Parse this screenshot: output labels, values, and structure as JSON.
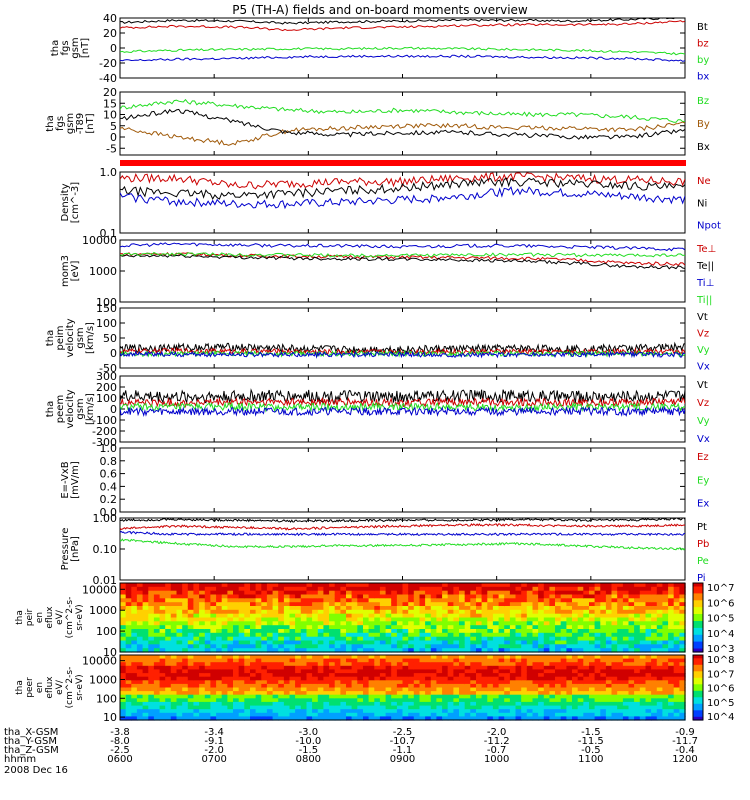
{
  "title": "P5 (TH-A) fields and on-board moments overview",
  "colors": {
    "black": "#000000",
    "red": "#cc0000",
    "green": "#22dd22",
    "blue": "#0000cc",
    "brown": "#a05a0a",
    "axis": "#000000"
  },
  "chart_data": {
    "type": "line",
    "x_ticks": [
      "0600",
      "0700",
      "0800",
      "0900",
      "1000",
      "1100",
      "1200"
    ],
    "x_range": [
      "0600",
      "1200"
    ],
    "date": "2008 Dec 16",
    "ephemeris": {
      "labels": [
        "tha_X-GSM",
        "tha_Y-GSM",
        "tha_Z-GSM",
        "hhmm"
      ],
      "rows": [
        [
          "-3.8",
          "-3.4",
          "-3.0",
          "-2.5",
          "-2.0",
          "-1.5",
          "-0.9"
        ],
        [
          "-8.0",
          "-9.1",
          "-10.0",
          "-10.7",
          "-11.2",
          "-11.5",
          "-11.7"
        ],
        [
          "-2.5",
          "-2.0",
          "-1.5",
          "-1.1",
          "-0.7",
          "-0.5",
          "-0.4"
        ],
        [
          "0600",
          "0700",
          "0800",
          "0900",
          "1000",
          "1100",
          "1200"
        ]
      ]
    },
    "panels": [
      {
        "ylabel": [
          "tha",
          "fgs",
          "gsm",
          "[nT]"
        ],
        "yscale": "linear",
        "ylim": [
          -40,
          40
        ],
        "ticks": [
          "40",
          "20",
          "0",
          "-20",
          "-40"
        ],
        "series": [
          {
            "name": "Bt",
            "color": "black",
            "values": [
              34,
              37,
              36,
              33,
              35,
              36,
              37,
              37,
              36,
              38,
              41
            ]
          },
          {
            "name": "bz",
            "color": "red",
            "values": [
              27,
              29,
              28,
              24,
              27,
              28,
              30,
              31,
              31,
              32,
              36
            ]
          },
          {
            "name": "by",
            "color": "green",
            "values": [
              -5,
              -3,
              -2,
              -1,
              -1,
              0,
              -1,
              -2,
              -3,
              -5,
              -8
            ]
          },
          {
            "name": "bx",
            "color": "blue",
            "values": [
              -17,
              -15,
              -14,
              -12,
              -11,
              -11,
              -11,
              -12,
              -13,
              -14,
              -17
            ]
          }
        ]
      },
      {
        "ylabel": [
          "tha",
          "fgs",
          "gsm",
          "-T89",
          "[nT]"
        ],
        "yscale": "linear",
        "ylim": [
          -8,
          20
        ],
        "ticks": [
          "20",
          "15",
          "10",
          "5",
          "0",
          "-5"
        ],
        "series": [
          {
            "name": "Bz",
            "color": "green",
            "values": [
              13,
              16,
              14,
              12,
              11,
              12,
              11,
              10,
              10,
              9,
              7
            ]
          },
          {
            "name": "By",
            "color": "brown",
            "values": [
              4,
              0,
              -3,
              3,
              4,
              5,
              5,
              4,
              4,
              3,
              6
            ]
          },
          {
            "name": "Bx",
            "color": "black",
            "values": [
              8,
              12,
              7,
              2,
              1,
              2,
              2,
              1,
              0,
              0,
              3
            ]
          }
        ]
      },
      {
        "ylabel": [
          "Density",
          "[cm^-3]"
        ],
        "yscale": "log",
        "ylim": [
          0.1,
          1.0
        ],
        "ticks": [
          "1.0",
          "0.1"
        ],
        "series": [
          {
            "name": "Ne",
            "color": "red",
            "values": [
              0.8,
              0.8,
              0.6,
              0.65,
              0.7,
              0.7,
              0.8,
              0.85,
              0.8,
              0.75,
              0.7
            ]
          },
          {
            "name": "Ni",
            "color": "black",
            "values": [
              0.5,
              0.45,
              0.42,
              0.45,
              0.5,
              0.55,
              0.65,
              0.7,
              0.65,
              0.6,
              0.55
            ]
          },
          {
            "name": "Npot",
            "color": "blue",
            "values": [
              0.4,
              0.33,
              0.3,
              0.3,
              0.32,
              0.35,
              0.4,
              0.5,
              0.45,
              0.4,
              0.35
            ]
          }
        ]
      },
      {
        "ylabel": [
          "mom3",
          "[eV]"
        ],
        "yscale": "log",
        "ylim": [
          100,
          10000
        ],
        "ticks": [
          "10000",
          "1000",
          "100"
        ],
        "series": [
          {
            "name": "Te⊥",
            "color": "red",
            "values": [
              3500,
              3600,
              3200,
              3000,
              2900,
              2800,
              2700,
              2600,
              2300,
              1800,
              1700
            ]
          },
          {
            "name": "Te||",
            "color": "black",
            "values": [
              3000,
              3100,
              2800,
              2600,
              2500,
              2400,
              2300,
              2100,
              1800,
              1400,
              1300
            ]
          },
          {
            "name": "Ti⊥",
            "color": "blue",
            "values": [
              6500,
              7500,
              7000,
              6500,
              6500,
              6000,
              6500,
              6500,
              6000,
              5500,
              5000
            ]
          },
          {
            "name": "Ti||",
            "color": "green",
            "values": [
              3400,
              3600,
              3400,
              3300,
              3200,
              3200,
              3300,
              3400,
              3300,
              3200,
              3300
            ]
          }
        ]
      },
      {
        "ylabel": [
          "tha",
          "peim",
          "velocity",
          "gsm",
          "[km/s]"
        ],
        "yscale": "linear",
        "ylim": [
          -50,
          150
        ],
        "ticks": [
          "150",
          "100",
          "50",
          "0",
          "-50"
        ],
        "series": [
          {
            "name": "Vt",
            "color": "black",
            "values": [
              15,
              18,
              20,
              15,
              12,
              12,
              14,
              15,
              14,
              16,
              20
            ]
          },
          {
            "name": "Vz",
            "color": "red",
            "values": [
              5,
              8,
              6,
              5,
              4,
              4,
              5,
              5,
              4,
              5,
              6
            ]
          },
          {
            "name": "Vy",
            "color": "green",
            "values": [
              -2,
              -3,
              -2,
              -3,
              -2,
              -2,
              -3,
              -2,
              -3,
              -2,
              -3
            ]
          },
          {
            "name": "Vx",
            "color": "blue",
            "values": [
              -3,
              -5,
              -4,
              -6,
              -5,
              -5,
              -6,
              -5,
              -6,
              -5,
              -6
            ]
          }
        ]
      },
      {
        "ylabel": [
          "tha",
          "peem",
          "velocity",
          "gsm",
          "[km/s]"
        ],
        "yscale": "linear",
        "ylim": [
          -300,
          300
        ],
        "ticks": [
          "300",
          "200",
          "100",
          "0",
          "-100",
          "-200",
          "-300"
        ],
        "series": [
          {
            "name": "Vt",
            "color": "black",
            "values": [
              120,
              110,
              115,
              120,
              115,
              110,
              120,
              120,
              110,
              115,
              120
            ]
          },
          {
            "name": "Vz",
            "color": "red",
            "values": [
              60,
              55,
              60,
              65,
              60,
              55,
              60,
              65,
              55,
              60,
              65
            ]
          },
          {
            "name": "Vy",
            "color": "green",
            "values": [
              20,
              15,
              20,
              15,
              20,
              15,
              20,
              15,
              20,
              15,
              20
            ]
          },
          {
            "name": "Vx",
            "color": "blue",
            "values": [
              -20,
              -25,
              -20,
              -25,
              -20,
              -25,
              -20,
              -25,
              -20,
              -25,
              -20
            ]
          }
        ]
      },
      {
        "ylabel": [
          "E=-VxB",
          "[mV/m]"
        ],
        "yscale": "linear",
        "ylim": [
          0.0,
          1.0
        ],
        "ticks": [
          "1.0",
          "0.8",
          "0.6",
          "0.4",
          "0.2",
          "0.0"
        ],
        "series": [
          {
            "name": "Ez",
            "color": "red",
            "values": []
          },
          {
            "name": "Ey",
            "color": "green",
            "values": []
          },
          {
            "name": "Ex",
            "color": "blue",
            "values": []
          }
        ]
      },
      {
        "ylabel": [
          "Pressure",
          "[nPa]"
        ],
        "yscale": "log",
        "ylim": [
          0.01,
          1.0
        ],
        "ticks": [
          "1.00",
          "0.10",
          "0.01"
        ],
        "series": [
          {
            "name": "Pt",
            "color": "black",
            "values": [
              0.85,
              0.9,
              0.85,
              0.8,
              0.82,
              0.85,
              0.85,
              0.9,
              0.85,
              0.85,
              0.95
            ]
          },
          {
            "name": "Pb",
            "color": "red",
            "values": [
              0.45,
              0.55,
              0.5,
              0.45,
              0.5,
              0.55,
              0.6,
              0.6,
              0.55,
              0.55,
              0.6
            ]
          },
          {
            "name": "Pe",
            "color": "green",
            "values": [
              0.2,
              0.15,
              0.12,
              0.12,
              0.13,
              0.13,
              0.14,
              0.15,
              0.13,
              0.11,
              0.1
            ]
          },
          {
            "name": "Pi",
            "color": "blue",
            "values": [
              0.35,
              0.3,
              0.3,
              0.3,
              0.3,
              0.3,
              0.3,
              0.3,
              0.3,
              0.3,
              0.3
            ]
          }
        ]
      }
    ],
    "spectrograms": [
      {
        "ylabel": [
          "tha",
          "peir",
          "en",
          "eflux",
          "eV/",
          "(cm^2-s-",
          "sr-eV)"
        ],
        "yscale": "log",
        "ylim": [
          10,
          20000
        ],
        "ticks": [
          "10000",
          "1000",
          "100",
          "10"
        ],
        "colorbar_ticks": [
          "10^7",
          "10^6",
          "10^5",
          "10^4",
          "10^3"
        ]
      },
      {
        "ylabel": [
          "tha",
          "peer",
          "en",
          "eflux",
          "eV/",
          "(cm^2-s-",
          "sr-eV)"
        ],
        "yscale": "log",
        "ylim": [
          7,
          20000
        ],
        "ticks": [
          "10000",
          "1000",
          "100",
          "10"
        ],
        "colorbar_ticks": [
          "10^8",
          "10^7",
          "10^6",
          "10^5",
          "10^4"
        ]
      }
    ]
  }
}
